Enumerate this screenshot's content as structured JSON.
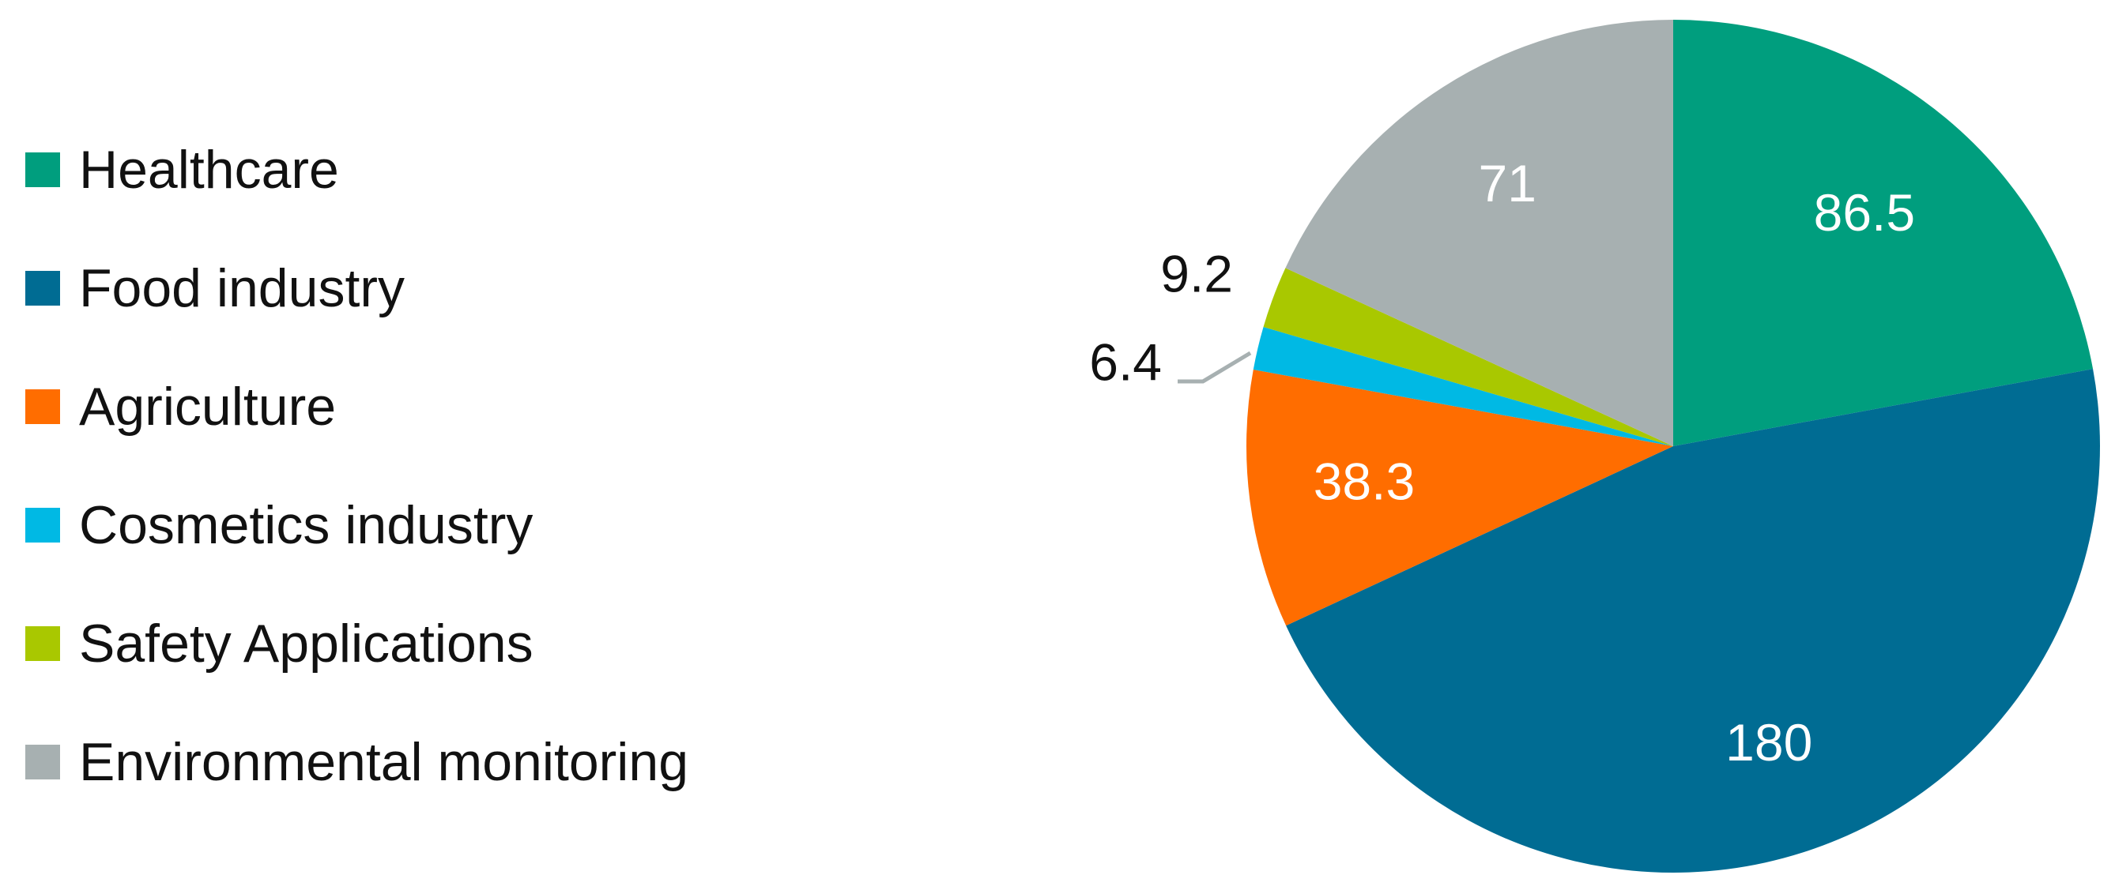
{
  "chart_data": {
    "type": "pie",
    "categories": [
      "Healthcare",
      "Food industry",
      "Agriculture",
      "Cosmetics industry",
      "Safety Applications",
      "Environmental monitoring"
    ],
    "values": [
      86.5,
      180,
      38.3,
      6.4,
      9.2,
      71
    ],
    "data_labels": [
      "86.5",
      "180",
      "38.3",
      "6.4",
      "9.2",
      "71"
    ],
    "colors": [
      "#009E7E",
      "#006C93",
      "#FF6D00",
      "#00B9E4",
      "#A9C800",
      "#A7B0B1"
    ],
    "label_colors": [
      "#FFFFFF",
      "#FFFFFF",
      "#FFFFFF",
      "#111111",
      "#111111",
      "#FFFFFF"
    ],
    "legend_position": "left",
    "start_angle": "12 o'clock",
    "direction": "clockwise"
  }
}
